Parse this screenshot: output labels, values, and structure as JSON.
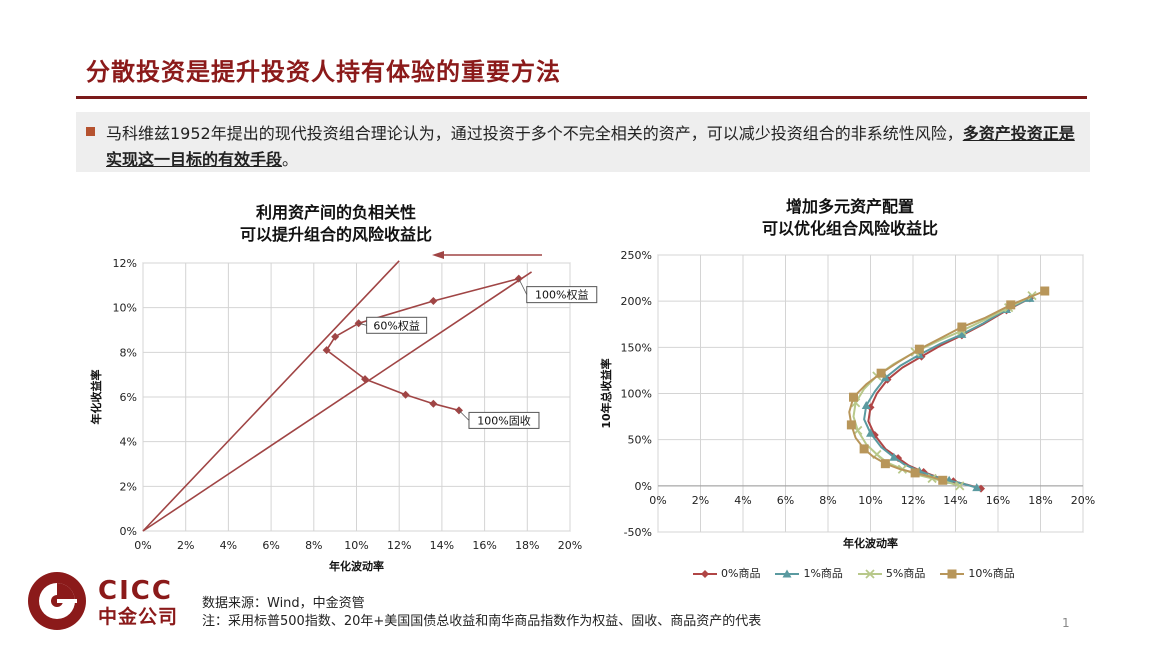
{
  "header": {
    "title": "分散投资是提升投资人持有体验的重要方法"
  },
  "bullet": {
    "text_part1": "马科维兹1952年提出的现代投资组合理论认为，通过投资于多个不完全相关的资产，可以减少投资组合的非系统性风险，",
    "text_emphasis": "多资产投资正是实现这一目标的有效手段",
    "text_end": "。"
  },
  "left_chart": {
    "title_line1": "利用资产间的负相关性",
    "title_line2": "可以提升组合的风险收益比"
  },
  "right_chart": {
    "title_line1": "增加多元资产配置",
    "title_line2": "可以优化组合风险收益比"
  },
  "chart_data": [
    {
      "type": "line",
      "xlabel": "年化波动率",
      "ylabel": "年化收益率",
      "xlim": [
        0,
        20
      ],
      "ylim": [
        0,
        12
      ],
      "xticks": [
        "0%",
        "2%",
        "4%",
        "6%",
        "8%",
        "10%",
        "12%",
        "14%",
        "16%",
        "18%",
        "20%"
      ],
      "yticks": [
        "0%",
        "2%",
        "4%",
        "6%",
        "8%",
        "10%",
        "12%"
      ],
      "grid": true,
      "series": [
        {
          "x": [
            14.8,
            13.6,
            12.3,
            10.4,
            8.6,
            9.0,
            10.1,
            13.6,
            17.6
          ],
          "y": [
            5.4,
            5.7,
            6.1,
            6.8,
            8.1,
            8.7,
            9.3,
            10.3,
            11.3
          ],
          "color": "#a04545"
        }
      ],
      "tangent_lines": [
        {
          "x": [
            0,
            12.0
          ],
          "y": [
            0,
            12.1
          ]
        },
        {
          "x": [
            0,
            18.2
          ],
          "y": [
            0,
            11.6
          ]
        }
      ],
      "annotations": [
        {
          "text": "100%权益",
          "x": 17.6,
          "y": 11.3
        },
        {
          "text": "60%权益",
          "x": 10.1,
          "y": 9.3
        },
        {
          "text": "100%固收",
          "x": 14.8,
          "y": 5.4
        }
      ]
    },
    {
      "type": "line",
      "xlabel": "年化波动率",
      "ylabel": "10年总收益率",
      "xlim": [
        0,
        20
      ],
      "ylim": [
        -50,
        250
      ],
      "xticks": [
        "0%",
        "2%",
        "4%",
        "6%",
        "8%",
        "10%",
        "12%",
        "14%",
        "16%",
        "18%",
        "20%"
      ],
      "yticks": [
        "-50%",
        "0%",
        "50%",
        "100%",
        "150%",
        "200%",
        "250%"
      ],
      "grid": true,
      "legend_position": "bottom",
      "series": [
        {
          "name": "0%商品",
          "color": "#b04545",
          "marker": "diamond",
          "x": [
            15.2,
            14.6,
            13.9,
            13.2,
            12.5,
            11.8,
            11.3,
            10.7,
            10.2,
            9.9,
            10.0,
            10.3,
            10.8,
            11.5,
            12.4,
            13.3,
            14.3,
            15.3,
            16.4,
            17.5
          ],
          "y": [
            -3,
            1,
            5,
            9,
            15,
            22,
            30,
            40,
            55,
            70,
            85,
            100,
            115,
            128,
            140,
            152,
            163,
            175,
            190,
            203
          ]
        },
        {
          "name": "1%商品",
          "color": "#5a9aa0",
          "marker": "triangle",
          "x": [
            15.0,
            14.4,
            13.7,
            13.0,
            12.3,
            11.6,
            11.1,
            10.5,
            10.0,
            9.7,
            9.8,
            10.2,
            10.7,
            11.4,
            12.3,
            13.3,
            14.3,
            15.3,
            16.4,
            17.5
          ],
          "y": [
            -2,
            2,
            6,
            10,
            16,
            23,
            31,
            42,
            57,
            72,
            87,
            102,
            117,
            130,
            142,
            154,
            164,
            176,
            191,
            203
          ]
        },
        {
          "name": "5%商品",
          "color": "#b8c88a",
          "marker": "x",
          "x": [
            14.2,
            13.6,
            12.9,
            12.2,
            11.5,
            10.8,
            10.3,
            9.8,
            9.4,
            9.2,
            9.3,
            9.7,
            10.3,
            11.1,
            12.1,
            13.2,
            14.3,
            15.4,
            16.5,
            17.6
          ],
          "y": [
            0,
            4,
            8,
            12,
            18,
            25,
            34,
            45,
            60,
            75,
            90,
            105,
            119,
            132,
            145,
            157,
            168,
            180,
            193,
            206
          ]
        },
        {
          "name": "10%商品",
          "color": "#b8965a",
          "marker": "square",
          "x": [
            13.4,
            12.8,
            12.1,
            11.4,
            10.7,
            10.1,
            9.7,
            9.3,
            9.1,
            9.0,
            9.2,
            9.8,
            10.5,
            11.3,
            12.3,
            13.3,
            14.3,
            15.4,
            16.6,
            18.2
          ],
          "y": [
            6,
            10,
            14,
            18,
            24,
            32,
            40,
            52,
            66,
            80,
            96,
            110,
            122,
            134,
            148,
            160,
            172,
            182,
            196,
            211
          ]
        }
      ]
    }
  ],
  "footer": {
    "source": "数据来源：Wind，中金资管",
    "note": "注：采用标普500指数、20年+美国国债总收益和南华商品指数作为权益、固收、商品资产的代表",
    "page": "1",
    "logo_en": "CICC",
    "logo_cn": "中金公司"
  }
}
